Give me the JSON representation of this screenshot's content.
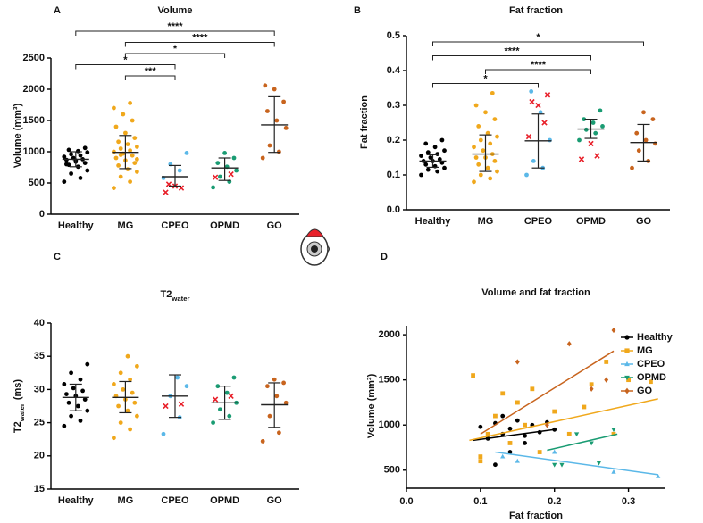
{
  "chart_data": [
    {
      "type": "dotplot",
      "panel": "A",
      "title": "Volume",
      "y_label": "Volume (mm³)",
      "ylim": [
        0,
        2500
      ],
      "yticks": [
        0,
        500,
        1000,
        1500,
        2000,
        2500
      ],
      "highlight_color": "#e8202a",
      "groups": [
        {
          "name": "Healthy",
          "color": "#000000",
          "mean": 880,
          "sd_low": 760,
          "sd_high": 1000,
          "values": [
            520,
            580,
            650,
            700,
            760,
            790,
            820,
            840,
            870,
            880,
            900,
            920,
            940,
            960,
            990,
            1010,
            1030,
            1060,
            860,
            800
          ],
          "highlight": []
        },
        {
          "name": "MG",
          "color": "#f0a81c",
          "mean": 990,
          "sd_low": 730,
          "sd_high": 1260,
          "values": [
            420,
            520,
            600,
            680,
            720,
            780,
            820,
            860,
            900,
            940,
            970,
            1000,
            1020,
            1050,
            1080,
            1120,
            1160,
            1220,
            1300,
            1400,
            1500,
            1600,
            1700,
            1780,
            950,
            880
          ],
          "highlight": []
        },
        {
          "name": "CPEO",
          "color": "#5bb8e8",
          "mean": 600,
          "sd_low": 450,
          "sd_high": 780,
          "values": [
            580,
            700,
            800,
            980
          ],
          "highlight": [
            350,
            420,
            450,
            480
          ]
        },
        {
          "name": "OPMD",
          "color": "#1a9c73",
          "mean": 740,
          "sd_low": 540,
          "sd_high": 900,
          "values": [
            430,
            520,
            600,
            700,
            760,
            820,
            900,
            980
          ],
          "highlight": [
            590,
            640
          ]
        },
        {
          "name": "GO",
          "color": "#c8641e",
          "mean": 1430,
          "sd_low": 990,
          "sd_high": 1880,
          "values": [
            900,
            1000,
            1100,
            1380,
            1500,
            1650,
            1800,
            2000,
            2060
          ],
          "highlight": []
        }
      ],
      "comparisons": [
        {
          "groups": [
            "Healthy",
            "GO"
          ],
          "label": "****"
        },
        {
          "groups": [
            "MG",
            "GO"
          ],
          "label": "****"
        },
        {
          "groups": [
            "MG",
            "OPMD"
          ],
          "label": "*"
        },
        {
          "groups": [
            "Healthy",
            "CPEO"
          ],
          "label": "*"
        },
        {
          "groups": [
            "MG",
            "CPEO"
          ],
          "label": "***"
        }
      ]
    },
    {
      "type": "dotplot",
      "panel": "B",
      "title": "Fat fraction",
      "y_label": "Fat fraction",
      "ylim": [
        0,
        0.5
      ],
      "yticks": [
        {
          "value": 0,
          "label": "0.0"
        },
        0.1,
        0.2,
        0.3,
        0.4,
        0.5
      ],
      "highlight_color": "#e8202a",
      "groups": [
        {
          "name": "Healthy",
          "color": "#000000",
          "mean": 0.14,
          "sd_low": 0.122,
          "sd_high": 0.158,
          "values": [
            0.1,
            0.11,
            0.115,
            0.12,
            0.125,
            0.13,
            0.135,
            0.14,
            0.14,
            0.145,
            0.15,
            0.155,
            0.16,
            0.165,
            0.17,
            0.18,
            0.19,
            0.2
          ],
          "highlight": []
        },
        {
          "name": "MG",
          "color": "#f0a81c",
          "mean": 0.16,
          "sd_low": 0.11,
          "sd_high": 0.215,
          "values": [
            0.08,
            0.09,
            0.1,
            0.11,
            0.12,
            0.13,
            0.14,
            0.15,
            0.15,
            0.16,
            0.17,
            0.18,
            0.19,
            0.2,
            0.21,
            0.22,
            0.24,
            0.26,
            0.28,
            0.3,
            0.335
          ],
          "highlight": []
        },
        {
          "name": "CPEO",
          "color": "#5bb8e8",
          "mean": 0.198,
          "sd_low": 0.12,
          "sd_high": 0.275,
          "values": [
            0.1,
            0.12,
            0.14,
            0.2,
            0.28,
            0.34
          ],
          "highlight": [
            0.21,
            0.25,
            0.3,
            0.31,
            0.33
          ]
        },
        {
          "name": "OPMD",
          "color": "#1a9c73",
          "mean": 0.232,
          "sd_low": 0.205,
          "sd_high": 0.26,
          "values": [
            0.2,
            0.22,
            0.23,
            0.24,
            0.25,
            0.26,
            0.285
          ],
          "highlight": [
            0.145,
            0.155,
            0.19
          ]
        },
        {
          "name": "GO",
          "color": "#c8641e",
          "mean": 0.193,
          "sd_low": 0.14,
          "sd_high": 0.245,
          "values": [
            0.12,
            0.14,
            0.17,
            0.19,
            0.2,
            0.22,
            0.26,
            0.28
          ],
          "highlight": []
        }
      ],
      "comparisons": [
        {
          "groups": [
            "Healthy",
            "GO"
          ],
          "label": "*"
        },
        {
          "groups": [
            "Healthy",
            "OPMD"
          ],
          "label": "****"
        },
        {
          "groups": [
            "MG",
            "OPMD"
          ],
          "label": "****"
        },
        {
          "groups": [
            "Healthy",
            "CPEO"
          ],
          "label": "*"
        }
      ]
    },
    {
      "type": "dotplot",
      "panel": "C",
      "title": "T2",
      "title_subscript": "water",
      "y_label": "T2",
      "y_label_subscript": "water",
      "y_label_unit": "(ms)",
      "ylim": [
        15,
        40
      ],
      "yticks": [
        15,
        20,
        25,
        30,
        35,
        40
      ],
      "highlight_color": "#e8202a",
      "groups": [
        {
          "name": "Healthy",
          "color": "#000000",
          "mean": 28.8,
          "sd_low": 26.8,
          "sd_high": 30.8,
          "values": [
            24.5,
            25.3,
            26,
            26.8,
            27.5,
            28,
            28.5,
            29,
            29.3,
            29.8,
            30.2,
            30.8,
            31.5,
            32.5,
            33.8
          ],
          "highlight": []
        },
        {
          "name": "MG",
          "color": "#f0a81c",
          "mean": 28.8,
          "sd_low": 26.5,
          "sd_high": 31.2,
          "values": [
            22.7,
            24,
            25,
            26,
            26.8,
            27.5,
            28,
            28.5,
            29,
            29.5,
            30,
            30.8,
            31.5,
            32.5,
            33.5,
            35
          ],
          "highlight": []
        },
        {
          "name": "CPEO",
          "color": "#5bb8e8",
          "mean": 29,
          "sd_low": 25.8,
          "sd_high": 32.2,
          "values": [
            23.3,
            25.8,
            29,
            30.5,
            31.8
          ],
          "highlight": [
            27.5,
            27.8
          ]
        },
        {
          "name": "OPMD",
          "color": "#1a9c73",
          "mean": 28,
          "sd_low": 25.5,
          "sd_high": 30.5,
          "values": [
            25,
            26,
            27,
            28,
            29.5,
            30.5,
            31.8
          ],
          "highlight": [
            28.5,
            29
          ]
        },
        {
          "name": "GO",
          "color": "#c8641e",
          "mean": 27.7,
          "sd_low": 24.3,
          "sd_high": 31,
          "values": [
            22.2,
            23.5,
            26,
            28,
            29,
            30.5,
            31,
            31.5
          ],
          "highlight": []
        }
      ],
      "comparisons": []
    },
    {
      "type": "scatter",
      "panel": "D",
      "title": "Volume and fat fraction",
      "x_label": "Fat fraction",
      "y_label": "Volume (mm³)",
      "xlim": [
        0,
        0.35
      ],
      "xticks": [
        {
          "value": 0,
          "label": "0.0"
        },
        0.1,
        0.2,
        0.3
      ],
      "ylim": [
        300,
        2100
      ],
      "yticks": [
        500,
        1000,
        1500,
        2000
      ],
      "legend": "upper-right",
      "series": [
        {
          "name": "Healthy",
          "color": "#000000",
          "marker": "circle",
          "x": [
            0.1,
            0.11,
            0.12,
            0.13,
            0.14,
            0.15,
            0.16,
            0.17,
            0.18,
            0.19,
            0.12,
            0.14,
            0.16,
            0.2,
            0.13
          ],
          "values": [
            980,
            850,
            1020,
            900,
            960,
            1050,
            800,
            1000,
            920,
            1030,
            560,
            700,
            880,
            950,
            1100
          ],
          "fit": {
            "x": [
              0.09,
              0.2
            ],
            "y": [
              830,
              950
            ]
          }
        },
        {
          "name": "MG",
          "color": "#f0a81c",
          "marker": "square",
          "x": [
            0.09,
            0.1,
            0.11,
            0.12,
            0.13,
            0.14,
            0.15,
            0.16,
            0.17,
            0.18,
            0.2,
            0.22,
            0.24,
            0.25,
            0.27,
            0.28,
            0.3,
            0.33,
            0.1,
            0.15
          ],
          "values": [
            1550,
            650,
            900,
            1100,
            1350,
            800,
            1250,
            1000,
            1400,
            700,
            1150,
            900,
            1200,
            1450,
            1700,
            900,
            1500,
            1480,
            600,
            1250
          ],
          "fit": {
            "x": [
              0.085,
              0.34
            ],
            "y": [
              830,
              1290
            ]
          }
        },
        {
          "name": "CPEO",
          "color": "#5bb8e8",
          "marker": "triangle",
          "x": [
            0.13,
            0.15,
            0.2,
            0.28,
            0.34
          ],
          "values": [
            650,
            600,
            700,
            480,
            430
          ],
          "fit": {
            "x": [
              0.12,
              0.34
            ],
            "y": [
              700,
              450
            ]
          }
        },
        {
          "name": "OPMD",
          "color": "#1a9c73",
          "marker": "triangle-down",
          "x": [
            0.2,
            0.21,
            0.23,
            0.25,
            0.26,
            0.28
          ],
          "values": [
            560,
            560,
            900,
            800,
            580,
            950
          ],
          "fit": {
            "x": [
              0.19,
              0.285
            ],
            "y": [
              720,
              900
            ]
          }
        },
        {
          "name": "GO",
          "color": "#c8641e",
          "marker": "diamond",
          "x": [
            0.15,
            0.19,
            0.22,
            0.25,
            0.27,
            0.28
          ],
          "values": [
            1700,
            1000,
            1900,
            1400,
            1500,
            2050
          ],
          "fit": {
            "x": [
              0.1,
              0.28
            ],
            "y": [
              900,
              1820
            ]
          }
        }
      ]
    }
  ]
}
